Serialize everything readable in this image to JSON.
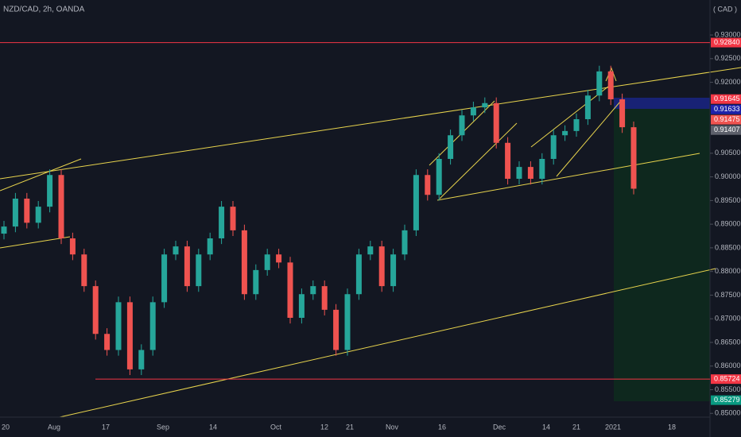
{
  "chart_data": {
    "type": "candlestick",
    "title": "NZD/CAD, 2h, OANDA",
    "currency_label": "( CAD )",
    "up_color": "#26a69a",
    "down_color": "#ef5350",
    "ylim": [
      0.8492,
      0.9374
    ],
    "yticks": [
      {
        "value": 0.93,
        "label": "0.93000"
      },
      {
        "value": 0.925,
        "label": "0.92500"
      },
      {
        "value": 0.92,
        "label": "0.92000"
      },
      {
        "value": 0.905,
        "label": "0.90500"
      },
      {
        "value": 0.9,
        "label": "0.90000"
      },
      {
        "value": 0.895,
        "label": "0.89500"
      },
      {
        "value": 0.89,
        "label": "0.89000"
      },
      {
        "value": 0.885,
        "label": "0.88500"
      },
      {
        "value": 0.88,
        "label": "0.88000"
      },
      {
        "value": 0.875,
        "label": "0.87500"
      },
      {
        "value": 0.87,
        "label": "0.87000"
      },
      {
        "value": 0.865,
        "label": "0.86500"
      },
      {
        "value": 0.86,
        "label": "0.86000"
      },
      {
        "value": 0.855,
        "label": "0.85500"
      },
      {
        "value": 0.85,
        "label": "0.85000"
      }
    ],
    "xaxis_labels": [
      "20",
      "Aug",
      "17",
      "Sep",
      "14",
      "Oct",
      "12",
      "21",
      "Nov",
      "16",
      "Dec",
      "14",
      "21",
      "2021",
      "18"
    ],
    "price_badges": [
      {
        "value": 0.9284,
        "label": "0.92840",
        "color": "#f23645",
        "line": true
      },
      {
        "value": 0.91645,
        "label": "0.91645",
        "color": "#f23645",
        "line": false
      },
      {
        "value": 0.91633,
        "label": "0.91633",
        "color": "#1e22aa",
        "line": false
      },
      {
        "value": 0.91475,
        "label": "0.91475",
        "color": "#ef5350",
        "line": false
      },
      {
        "value": 0.91407,
        "label": "0.91407",
        "color": "#5d606b",
        "line": false
      },
      {
        "value": 0.85724,
        "label": "0.85724",
        "color": "#f23645",
        "line": true
      },
      {
        "value": 0.85279,
        "label": "0.85279",
        "color": "#089981",
        "line": false
      }
    ],
    "ohlc": [
      [
        0.888,
        0.8907,
        0.8868,
        0.8895
      ],
      [
        0.8895,
        0.8966,
        0.8883,
        0.8954
      ],
      [
        0.8954,
        0.8966,
        0.8891,
        0.8903
      ],
      [
        0.8903,
        0.8949,
        0.8891,
        0.8937
      ],
      [
        0.8937,
        0.9016,
        0.8925,
        0.9004
      ],
      [
        0.9004,
        0.9016,
        0.8858,
        0.887
      ],
      [
        0.887,
        0.8882,
        0.8824,
        0.8836
      ],
      [
        0.8836,
        0.8848,
        0.8757,
        0.8769
      ],
      [
        0.8769,
        0.8781,
        0.8656,
        0.8668
      ],
      [
        0.8668,
        0.868,
        0.8622,
        0.8634
      ],
      [
        0.8634,
        0.8747,
        0.8622,
        0.8735
      ],
      [
        0.8735,
        0.8747,
        0.8581,
        0.8593
      ],
      [
        0.8593,
        0.8646,
        0.8581,
        0.8634
      ],
      [
        0.8634,
        0.8747,
        0.8622,
        0.8735
      ],
      [
        0.8735,
        0.8848,
        0.8723,
        0.8836
      ],
      [
        0.8836,
        0.8865,
        0.8824,
        0.8853
      ],
      [
        0.8853,
        0.8865,
        0.8757,
        0.8769
      ],
      [
        0.8769,
        0.8848,
        0.8757,
        0.8836
      ],
      [
        0.8836,
        0.8882,
        0.8824,
        0.887
      ],
      [
        0.887,
        0.8949,
        0.8858,
        0.8937
      ],
      [
        0.8937,
        0.8949,
        0.8875,
        0.8887
      ],
      [
        0.8887,
        0.8899,
        0.874,
        0.8752
      ],
      [
        0.8752,
        0.8815,
        0.874,
        0.8803
      ],
      [
        0.8803,
        0.8848,
        0.8791,
        0.8836
      ],
      [
        0.8836,
        0.8848,
        0.8807,
        0.8819
      ],
      [
        0.8819,
        0.8831,
        0.869,
        0.8702
      ],
      [
        0.8702,
        0.8764,
        0.869,
        0.8752
      ],
      [
        0.8752,
        0.8781,
        0.874,
        0.8769
      ],
      [
        0.8769,
        0.8781,
        0.8707,
        0.8719
      ],
      [
        0.8719,
        0.8731,
        0.8622,
        0.8634
      ],
      [
        0.8634,
        0.8764,
        0.8622,
        0.8752
      ],
      [
        0.8752,
        0.8848,
        0.874,
        0.8836
      ],
      [
        0.8836,
        0.8865,
        0.8824,
        0.8853
      ],
      [
        0.8853,
        0.8865,
        0.8757,
        0.8769
      ],
      [
        0.8769,
        0.8848,
        0.8757,
        0.8836
      ],
      [
        0.8836,
        0.8899,
        0.8824,
        0.8887
      ],
      [
        0.8887,
        0.9016,
        0.8875,
        0.9004
      ],
      [
        0.9004,
        0.9016,
        0.895,
        0.8962
      ],
      [
        0.8962,
        0.905,
        0.895,
        0.9038
      ],
      [
        0.9038,
        0.91,
        0.9026,
        0.9088
      ],
      [
        0.9088,
        0.9142,
        0.9076,
        0.913
      ],
      [
        0.913,
        0.9159,
        0.9118,
        0.9147
      ],
      [
        0.9147,
        0.9168,
        0.9135,
        0.9156
      ],
      [
        0.9156,
        0.9168,
        0.906,
        0.9072
      ],
      [
        0.9072,
        0.9084,
        0.8984,
        0.8996
      ],
      [
        0.8996,
        0.9033,
        0.8984,
        0.9021
      ],
      [
        0.9021,
        0.9033,
        0.8984,
        0.8996
      ],
      [
        0.8996,
        0.905,
        0.8984,
        0.9038
      ],
      [
        0.9038,
        0.91,
        0.9026,
        0.9088
      ],
      [
        0.9088,
        0.9109,
        0.9076,
        0.9097
      ],
      [
        0.9097,
        0.9134,
        0.9085,
        0.9122
      ],
      [
        0.9122,
        0.9184,
        0.911,
        0.9172
      ],
      [
        0.9172,
        0.9235,
        0.916,
        0.9223
      ],
      [
        0.9223,
        0.9235,
        0.9152,
        0.9164
      ],
      [
        0.9164,
        0.9176,
        0.9093,
        0.9105
      ],
      [
        0.9105,
        0.9117,
        0.8963,
        0.8975
      ]
    ]
  }
}
